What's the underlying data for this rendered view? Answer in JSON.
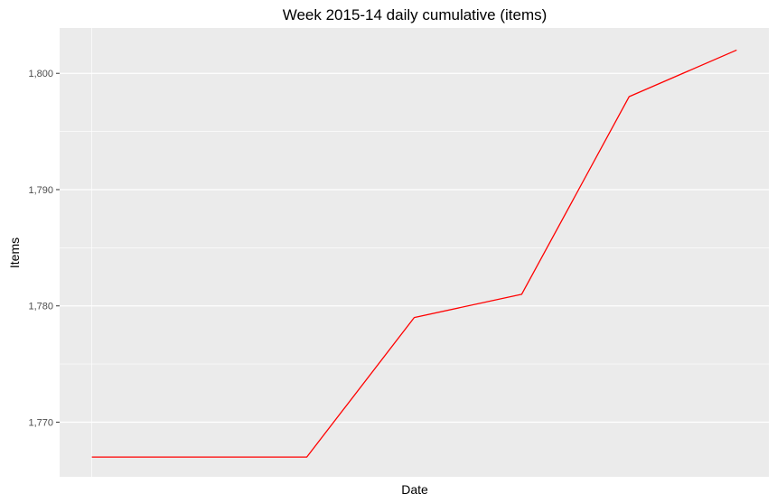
{
  "chart_data": {
    "type": "line",
    "title": "Week 2015-14 daily cumulative (items)",
    "xlabel": "Date",
    "ylabel": "Items",
    "x": [
      1,
      2,
      3,
      4,
      5,
      6,
      7
    ],
    "series": [
      {
        "values": [
          1767,
          1767,
          1767,
          1779,
          1781,
          1798,
          1802
        ],
        "color": "#ff0000"
      }
    ],
    "y_ticks": [
      1770,
      1780,
      1790,
      1800
    ],
    "y_tick_labels": [
      "1,770",
      "1,780",
      "1,790",
      "1,800"
    ],
    "ylim": [
      1765.3,
      1803.9
    ],
    "xlim": [
      0.7,
      7.3
    ],
    "grid": true,
    "background_color": "#ebebeb",
    "grid_color": "#ffffff"
  }
}
